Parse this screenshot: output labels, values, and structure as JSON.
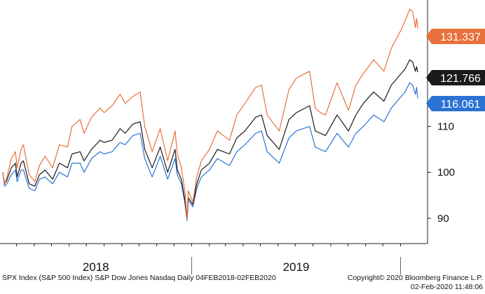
{
  "footer": {
    "source": "SPX Index (S&P 500 Index) S&P Dow Jones Nasdaq  Daily 04FEB2018-02FEB2020",
    "copyright": "Copyright© 2020 Bloomberg Finance L.P.",
    "timestamp": "02-Feb-2020 11:48:06"
  },
  "chart_data": {
    "type": "line",
    "title": "",
    "xlabel": "",
    "ylabel": "",
    "x_range": [
      "2018-02-05",
      "2020-01-31"
    ],
    "x_year_labels": [
      "2018",
      "2019"
    ],
    "y_ticks": [
      90,
      100,
      110,
      120,
      130
    ],
    "y_tick_labels": [
      "90",
      "100",
      "110",
      "",
      ""
    ],
    "ylim": [
      84.5,
      137.5
    ],
    "grid": false,
    "legend": "none",
    "last_value_badges": true,
    "series": [
      {
        "color": "#e8703a",
        "last_label": "131.337",
        "points": [
          [
            "2018-02-05",
            100.0
          ],
          [
            "2018-02-08",
            97.5
          ],
          [
            "2018-02-12",
            98.8
          ],
          [
            "2018-02-20",
            103.0
          ],
          [
            "2018-02-27",
            104.5
          ],
          [
            "2018-03-02",
            101.0
          ],
          [
            "2018-03-09",
            105.0
          ],
          [
            "2018-03-13",
            106.0
          ],
          [
            "2018-03-23",
            99.5
          ],
          [
            "2018-04-02",
            98.0
          ],
          [
            "2018-04-10",
            101.5
          ],
          [
            "2018-04-20",
            103.5
          ],
          [
            "2018-05-03",
            101.0
          ],
          [
            "2018-05-15",
            106.0
          ],
          [
            "2018-05-29",
            105.5
          ],
          [
            "2018-06-06",
            110.0
          ],
          [
            "2018-06-20",
            111.5
          ],
          [
            "2018-06-27",
            108.5
          ],
          [
            "2018-07-10",
            112.0
          ],
          [
            "2018-07-25",
            114.0
          ],
          [
            "2018-08-01",
            113.0
          ],
          [
            "2018-08-15",
            114.5
          ],
          [
            "2018-08-29",
            117.0
          ],
          [
            "2018-09-07",
            115.0
          ],
          [
            "2018-09-20",
            116.5
          ],
          [
            "2018-10-03",
            117.5
          ],
          [
            "2018-10-11",
            110.0
          ],
          [
            "2018-10-24",
            104.5
          ],
          [
            "2018-11-07",
            109.5
          ],
          [
            "2018-11-20",
            102.5
          ],
          [
            "2018-12-03",
            109.0
          ],
          [
            "2018-12-07",
            104.0
          ],
          [
            "2018-12-14",
            101.0
          ],
          [
            "2018-12-20",
            96.0
          ],
          [
            "2018-12-24",
            89.8
          ],
          [
            "2018-12-26",
            96.0
          ],
          [
            "2019-01-03",
            93.5
          ],
          [
            "2019-01-10",
            99.0
          ],
          [
            "2019-01-18",
            102.5
          ],
          [
            "2019-02-01",
            105.0
          ],
          [
            "2019-02-15",
            109.0
          ],
          [
            "2019-03-08",
            107.0
          ],
          [
            "2019-03-21",
            112.5
          ],
          [
            "2019-04-04",
            115.0
          ],
          [
            "2019-04-23",
            118.5
          ],
          [
            "2019-05-03",
            119.0
          ],
          [
            "2019-05-13",
            112.5
          ],
          [
            "2019-06-03",
            109.0
          ],
          [
            "2019-06-20",
            118.0
          ],
          [
            "2019-07-03",
            120.5
          ],
          [
            "2019-07-26",
            122.0
          ],
          [
            "2019-08-05",
            114.0
          ],
          [
            "2019-08-14",
            113.0
          ],
          [
            "2019-08-23",
            112.5
          ],
          [
            "2019-09-12",
            119.5
          ],
          [
            "2019-10-02",
            113.5
          ],
          [
            "2019-10-15",
            119.0
          ],
          [
            "2019-10-28",
            121.5
          ],
          [
            "2019-11-15",
            124.5
          ],
          [
            "2019-12-03",
            122.0
          ],
          [
            "2019-12-16",
            127.0
          ],
          [
            "2020-01-02",
            131.0
          ],
          [
            "2020-01-09",
            133.0
          ],
          [
            "2020-01-17",
            135.5
          ],
          [
            "2020-01-22",
            135.0
          ],
          [
            "2020-01-27",
            131.5
          ],
          [
            "2020-01-29",
            133.5
          ],
          [
            "2020-01-31",
            131.3
          ]
        ]
      },
      {
        "color": "#1a1a1a",
        "last_label": "121.766",
        "points": [
          [
            "2018-02-05",
            100.0
          ],
          [
            "2018-02-08",
            97.5
          ],
          [
            "2018-02-12",
            98.3
          ],
          [
            "2018-02-20",
            101.0
          ],
          [
            "2018-02-27",
            102.0
          ],
          [
            "2018-03-02",
            99.0
          ],
          [
            "2018-03-09",
            102.0
          ],
          [
            "2018-03-13",
            102.5
          ],
          [
            "2018-03-23",
            97.5
          ],
          [
            "2018-04-02",
            97.0
          ],
          [
            "2018-04-10",
            99.5
          ],
          [
            "2018-04-20",
            100.5
          ],
          [
            "2018-05-03",
            98.5
          ],
          [
            "2018-05-15",
            102.0
          ],
          [
            "2018-05-29",
            101.0
          ],
          [
            "2018-06-06",
            104.0
          ],
          [
            "2018-06-20",
            104.5
          ],
          [
            "2018-06-27",
            102.5
          ],
          [
            "2018-07-10",
            105.0
          ],
          [
            "2018-07-25",
            107.0
          ],
          [
            "2018-08-01",
            106.5
          ],
          [
            "2018-08-15",
            107.0
          ],
          [
            "2018-08-29",
            109.5
          ],
          [
            "2018-09-07",
            108.5
          ],
          [
            "2018-09-20",
            110.5
          ],
          [
            "2018-10-03",
            111.0
          ],
          [
            "2018-10-11",
            105.0
          ],
          [
            "2018-10-24",
            101.0
          ],
          [
            "2018-11-07",
            105.5
          ],
          [
            "2018-11-20",
            100.0
          ],
          [
            "2018-12-03",
            105.0
          ],
          [
            "2018-12-07",
            100.5
          ],
          [
            "2018-12-14",
            98.5
          ],
          [
            "2018-12-20",
            94.0
          ],
          [
            "2018-12-24",
            89.8
          ],
          [
            "2018-12-26",
            94.5
          ],
          [
            "2019-01-03",
            93.0
          ],
          [
            "2019-01-10",
            97.5
          ],
          [
            "2019-01-18",
            100.5
          ],
          [
            "2019-02-01",
            102.0
          ],
          [
            "2019-02-15",
            105.0
          ],
          [
            "2019-03-08",
            104.0
          ],
          [
            "2019-03-21",
            107.5
          ],
          [
            "2019-04-04",
            109.0
          ],
          [
            "2019-04-23",
            112.0
          ],
          [
            "2019-05-03",
            112.5
          ],
          [
            "2019-05-13",
            108.0
          ],
          [
            "2019-06-03",
            105.0
          ],
          [
            "2019-06-20",
            111.5
          ],
          [
            "2019-07-03",
            113.0
          ],
          [
            "2019-07-26",
            114.5
          ],
          [
            "2019-08-05",
            109.0
          ],
          [
            "2019-08-14",
            108.5
          ],
          [
            "2019-08-23",
            108.0
          ],
          [
            "2019-09-12",
            112.5
          ],
          [
            "2019-10-02",
            109.0
          ],
          [
            "2019-10-15",
            112.5
          ],
          [
            "2019-10-28",
            115.0
          ],
          [
            "2019-11-15",
            117.5
          ],
          [
            "2019-12-03",
            115.5
          ],
          [
            "2019-12-16",
            119.0
          ],
          [
            "2020-01-02",
            121.5
          ],
          [
            "2020-01-09",
            122.5
          ],
          [
            "2020-01-17",
            124.5
          ],
          [
            "2020-01-22",
            124.0
          ],
          [
            "2020-01-27",
            122.0
          ],
          [
            "2020-01-29",
            123.0
          ],
          [
            "2020-01-31",
            121.8
          ]
        ]
      },
      {
        "color": "#2a73d4",
        "last_label": "116.061",
        "points": [
          [
            "2018-02-05",
            100.0
          ],
          [
            "2018-02-08",
            97.0
          ],
          [
            "2018-02-12",
            97.5
          ],
          [
            "2018-02-20",
            99.5
          ],
          [
            "2018-02-27",
            100.5
          ],
          [
            "2018-03-02",
            98.0
          ],
          [
            "2018-03-09",
            100.5
          ],
          [
            "2018-03-13",
            100.5
          ],
          [
            "2018-03-23",
            96.5
          ],
          [
            "2018-04-02",
            96.0
          ],
          [
            "2018-04-10",
            98.5
          ],
          [
            "2018-04-20",
            99.0
          ],
          [
            "2018-05-03",
            97.5
          ],
          [
            "2018-05-15",
            100.0
          ],
          [
            "2018-05-29",
            99.0
          ],
          [
            "2018-06-06",
            102.0
          ],
          [
            "2018-06-20",
            102.0
          ],
          [
            "2018-06-27",
            100.0
          ],
          [
            "2018-07-10",
            103.0
          ],
          [
            "2018-07-25",
            104.5
          ],
          [
            "2018-08-01",
            104.0
          ],
          [
            "2018-08-15",
            104.5
          ],
          [
            "2018-08-29",
            106.5
          ],
          [
            "2018-09-07",
            106.0
          ],
          [
            "2018-09-20",
            108.0
          ],
          [
            "2018-10-03",
            108.5
          ],
          [
            "2018-10-11",
            103.0
          ],
          [
            "2018-10-24",
            99.0
          ],
          [
            "2018-11-07",
            103.5
          ],
          [
            "2018-11-20",
            98.5
          ],
          [
            "2018-12-03",
            103.0
          ],
          [
            "2018-12-07",
            99.5
          ],
          [
            "2018-12-14",
            97.5
          ],
          [
            "2018-12-20",
            93.5
          ],
          [
            "2018-12-24",
            89.5
          ],
          [
            "2018-12-26",
            94.0
          ],
          [
            "2019-01-03",
            92.5
          ],
          [
            "2019-01-10",
            96.5
          ],
          [
            "2019-01-18",
            99.0
          ],
          [
            "2019-02-01",
            100.5
          ],
          [
            "2019-02-15",
            103.0
          ],
          [
            "2019-03-08",
            101.5
          ],
          [
            "2019-03-21",
            104.5
          ],
          [
            "2019-04-04",
            106.0
          ],
          [
            "2019-04-23",
            108.5
          ],
          [
            "2019-05-03",
            109.0
          ],
          [
            "2019-05-13",
            104.5
          ],
          [
            "2019-06-03",
            102.0
          ],
          [
            "2019-06-20",
            107.5
          ],
          [
            "2019-07-03",
            109.0
          ],
          [
            "2019-07-26",
            110.0
          ],
          [
            "2019-08-05",
            105.5
          ],
          [
            "2019-08-14",
            105.0
          ],
          [
            "2019-08-23",
            104.5
          ],
          [
            "2019-09-12",
            108.5
          ],
          [
            "2019-10-02",
            105.5
          ],
          [
            "2019-10-15",
            108.5
          ],
          [
            "2019-10-28",
            110.0
          ],
          [
            "2019-11-15",
            112.5
          ],
          [
            "2019-12-03",
            111.0
          ],
          [
            "2019-12-16",
            114.0
          ],
          [
            "2020-01-02",
            116.5
          ],
          [
            "2020-01-09",
            117.5
          ],
          [
            "2020-01-17",
            119.5
          ],
          [
            "2020-01-22",
            119.0
          ],
          [
            "2020-01-27",
            117.0
          ],
          [
            "2020-01-29",
            118.5
          ],
          [
            "2020-01-31",
            116.1
          ]
        ]
      }
    ]
  }
}
